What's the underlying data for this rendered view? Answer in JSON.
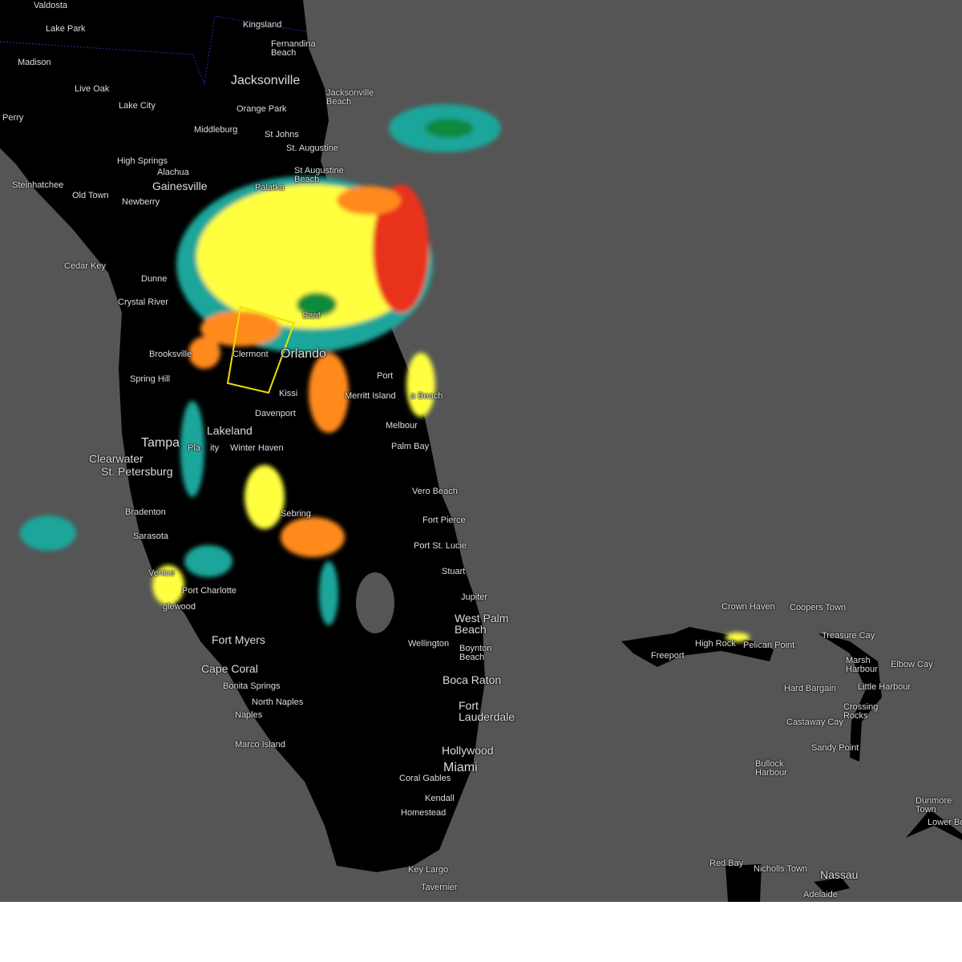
{
  "map": {
    "type": "radar reflectivity map",
    "colors": {
      "water": "#555555",
      "land": "#000000",
      "warning_polygon": "#f0e000",
      "light": "#1aa59a",
      "green": "#0f8a3c",
      "yellow": "#ffff40",
      "orange": "#ff8a1a",
      "red": "#e8301a"
    },
    "labels": [
      "Valdosta",
      "Lake Park",
      "Madison",
      "Live Oak",
      "Lake City",
      "Perry",
      "High Springs",
      "Alachua",
      "Gainesville",
      "Newberry",
      "Steinhatchee",
      "Old Town",
      "Cedar Key",
      "Dunne",
      "Crystal River",
      "Brooksville",
      "Spring Hill",
      "Tampa",
      "Clearwater",
      "St. Petersburg",
      "Bradenton",
      "Sarasota",
      "Venice",
      "Port Charlotte",
      "glewood",
      "Fort Myers",
      "Cape Coral",
      "Bonita Springs",
      "North Naples",
      "Naples",
      "Marco Island",
      "Kingsland",
      "Fernandina\nBeach",
      "Jacksonville",
      "Jacksonville\nBeach",
      "Orange Park",
      "Middleburg",
      "St Johns",
      "St. Augustine",
      "St Augustine\nBeach",
      "Palatka",
      "Sanf",
      "Clermont",
      "Orlando",
      "Port",
      "Kissi",
      "Merritt Island",
      "a Beach",
      "Davenport",
      "Lakeland",
      "Pla    ity",
      "Winter Haven",
      "Melbour",
      "Palm Bay",
      "Vero Beach",
      "Fort Pierce",
      "Sebring",
      "Port St. Lucie",
      "Stuart",
      "Jupiter",
      "West Palm\nBeach",
      "Wellington",
      "Boynton\nBeach",
      "Boca Raton",
      "Fort\nLauderdale",
      "Hollywood",
      "Miami",
      "Coral Gables",
      "Kendall",
      "Homestead",
      "Key Largo",
      "Tavernier",
      "Crown Haven",
      "Coopers Town",
      "High Rock",
      "Pelican Point",
      "Freeport",
      "Treasure Cay",
      "Marsh\nHarbour",
      "Elbow Cay",
      "Hard Bargain",
      "Little Harbour",
      "Crossing\nRocks",
      "Castaway Cay",
      "Sandy Point",
      "Bullock\nHarbour",
      "Dunmore\nTown",
      "Lower Bo",
      "Red Bay",
      "Nicholls Town",
      "Nassau",
      "Adelaide"
    ]
  }
}
